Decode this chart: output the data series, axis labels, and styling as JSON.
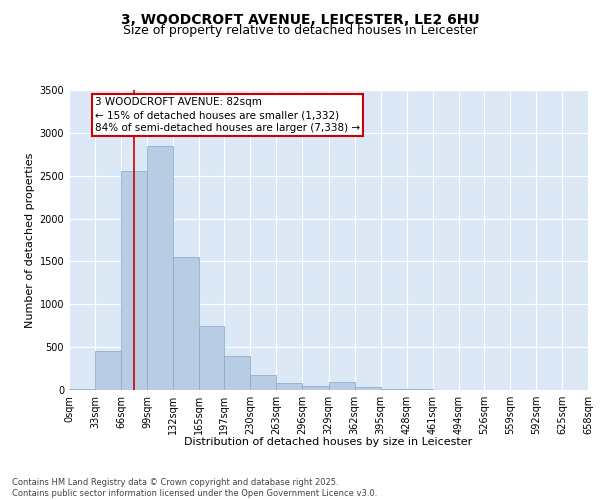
{
  "title": "3, WOODCROFT AVENUE, LEICESTER, LE2 6HU",
  "subtitle": "Size of property relative to detached houses in Leicester",
  "xlabel": "Distribution of detached houses by size in Leicester",
  "ylabel": "Number of detached properties",
  "bin_labels": [
    "0sqm",
    "33sqm",
    "66sqm",
    "99sqm",
    "132sqm",
    "165sqm",
    "197sqm",
    "230sqm",
    "263sqm",
    "296sqm",
    "329sqm",
    "362sqm",
    "395sqm",
    "428sqm",
    "461sqm",
    "494sqm",
    "526sqm",
    "559sqm",
    "592sqm",
    "625sqm",
    "658sqm"
  ],
  "bin_edges": [
    0,
    33,
    66,
    99,
    132,
    165,
    197,
    230,
    263,
    296,
    329,
    362,
    395,
    428,
    461,
    494,
    526,
    559,
    592,
    625,
    658
  ],
  "bar_heights": [
    10,
    450,
    2550,
    2850,
    1550,
    750,
    400,
    175,
    80,
    50,
    90,
    30,
    15,
    10,
    5,
    3,
    2,
    1,
    1,
    0
  ],
  "bar_color": "#b8cce4",
  "bar_edge_color": "#7fa8cc",
  "property_size": 82,
  "red_line_color": "#cc0000",
  "annotation_line1": "3 WOODCROFT AVENUE: 82sqm",
  "annotation_line2": "← 15% of detached houses are smaller (1,332)",
  "annotation_line3": "84% of semi-detached houses are larger (7,338) →",
  "annotation_box_color": "#cc0000",
  "ylim": [
    0,
    3500
  ],
  "yticks": [
    0,
    500,
    1000,
    1500,
    2000,
    2500,
    3000,
    3500
  ],
  "background_color": "#dce8f5",
  "grid_color": "#ffffff",
  "footer_line1": "Contains HM Land Registry data © Crown copyright and database right 2025.",
  "footer_line2": "Contains public sector information licensed under the Open Government Licence v3.0.",
  "title_fontsize": 10,
  "subtitle_fontsize": 9,
  "axis_label_fontsize": 8,
  "tick_fontsize": 7,
  "annotation_fontsize": 7.5,
  "footer_fontsize": 6
}
